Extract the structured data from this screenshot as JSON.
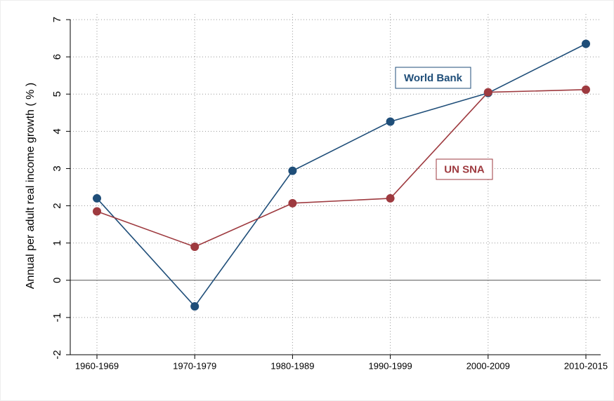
{
  "chart_data": {
    "type": "line",
    "y_label": "Annual per adult real income growth ( % )",
    "categories": [
      "1960-1969",
      "1970-1979",
      "1980-1989",
      "1990-1999",
      "2000-2009",
      "2010-2015"
    ],
    "series": [
      {
        "name": "World Bank",
        "color": "#1f4e79",
        "values": [
          2.2,
          -0.7,
          2.94,
          4.26,
          5.03,
          6.35
        ]
      },
      {
        "name": "UN SNA",
        "color": "#9e3a3f",
        "values": [
          1.85,
          0.9,
          2.07,
          2.2,
          5.05,
          5.12
        ]
      }
    ],
    "ylim": [
      -2,
      7
    ],
    "yticks": [
      -2,
      -1,
      0,
      1,
      2,
      3,
      4,
      5,
      6,
      7
    ],
    "grid": true
  }
}
